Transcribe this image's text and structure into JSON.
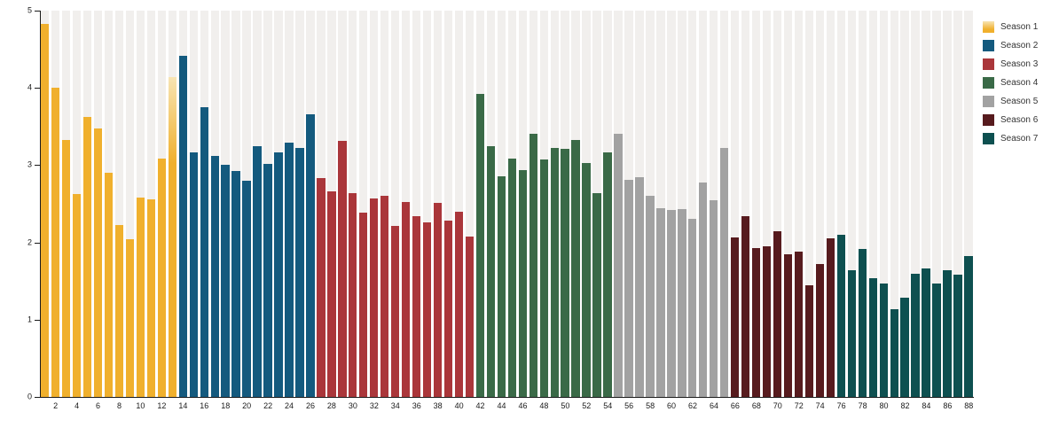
{
  "chart_data": {
    "type": "bar",
    "title": "",
    "xlabel": "",
    "ylabel": "",
    "ylim": [
      0,
      5
    ],
    "yticks": [
      0,
      1,
      2,
      3,
      4,
      5
    ],
    "x_range": [
      1,
      88
    ],
    "xticks": [
      2,
      4,
      6,
      8,
      10,
      12,
      14,
      16,
      18,
      20,
      22,
      24,
      26,
      28,
      30,
      32,
      34,
      36,
      38,
      40,
      42,
      44,
      46,
      48,
      50,
      52,
      54,
      56,
      58,
      60,
      62,
      64,
      66,
      68,
      70,
      72,
      74,
      76,
      78,
      80,
      82,
      84,
      86,
      88
    ],
    "grid": "off",
    "background_stripes": true,
    "legend_position": "right-top",
    "highlight_episode": 13,
    "highlight_style": "gradient-fade-top",
    "series": [
      {
        "name": "Season 1",
        "color": "#F0B02D",
        "start_episode": 1,
        "values": [
          4.83,
          4.0,
          3.33,
          2.63,
          3.62,
          3.48,
          2.9,
          2.22,
          2.04,
          2.58,
          2.56,
          3.09,
          4.14
        ]
      },
      {
        "name": "Season 2",
        "color": "#145A7E",
        "start_episode": 14,
        "values": [
          4.42,
          3.17,
          3.75,
          3.12,
          3.0,
          2.93,
          2.8,
          3.25,
          3.02,
          3.17,
          3.29,
          3.22,
          3.66
        ]
      },
      {
        "name": "Season 3",
        "color": "#AA363A",
        "start_episode": 27,
        "values": [
          2.83,
          2.66,
          3.32,
          2.64,
          2.39,
          2.57,
          2.6,
          2.21,
          2.52,
          2.34,
          2.26,
          2.51,
          2.28,
          2.4,
          2.08
        ]
      },
      {
        "name": "Season 4",
        "color": "#3A6A47",
        "start_episode": 42,
        "values": [
          3.92,
          3.25,
          2.86,
          3.08,
          2.94,
          3.41,
          3.07,
          3.22,
          3.21,
          3.33,
          3.03,
          2.64,
          3.17
        ]
      },
      {
        "name": "Season 5",
        "color": "#A2A2A2",
        "start_episode": 55,
        "values": [
          3.41,
          2.81,
          2.84,
          2.6,
          2.44,
          2.42,
          2.43,
          2.3,
          2.77,
          2.55,
          3.22
        ]
      },
      {
        "name": "Season 6",
        "color": "#571B1E",
        "start_episode": 66,
        "values": [
          2.07,
          2.34,
          1.93,
          1.95,
          2.14,
          1.85,
          1.88,
          1.45,
          1.72,
          2.05
        ]
      },
      {
        "name": "Season 7",
        "color": "#0E5050",
        "start_episode": 76,
        "values": [
          2.1,
          1.64,
          1.91,
          1.54,
          1.47,
          1.13,
          1.29,
          1.59,
          1.66,
          1.47,
          1.64,
          1.58,
          1.82
        ]
      }
    ],
    "highlight_gradient_top_color": "#F7E4B3",
    "stripe_color": "#F1EFED",
    "axis_color": "#1a1a1a"
  }
}
